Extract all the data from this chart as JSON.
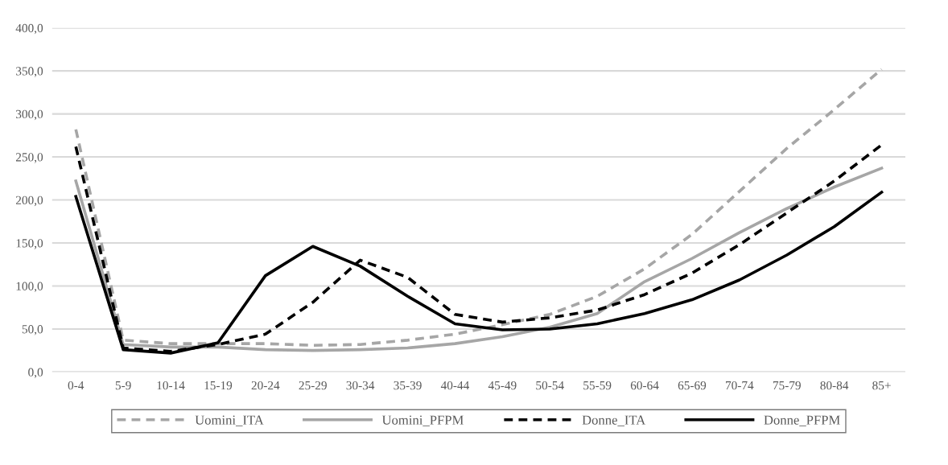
{
  "chart_data": {
    "type": "line",
    "categories": [
      "0-4",
      "5-9",
      "10-14",
      "15-19",
      "20-24",
      "25-29",
      "30-34",
      "35-39",
      "40-44",
      "45-49",
      "50-54",
      "55-59",
      "60-64",
      "65-69",
      "70-74",
      "75-79",
      "80-84",
      "85+"
    ],
    "series": [
      {
        "name": "Uomini_ITA",
        "color": "#a6a6a6",
        "line_style": "dashed",
        "values": [
          282,
          37,
          33,
          33,
          33,
          31,
          32,
          37,
          44,
          55,
          67,
          88,
          120,
          160,
          210,
          260,
          305,
          352
        ]
      },
      {
        "name": "Uomini_PFPM",
        "color": "#a6a6a6",
        "line_style": "solid",
        "values": [
          222,
          32,
          29,
          29,
          26,
          25,
          26,
          28,
          33,
          41,
          52,
          68,
          105,
          132,
          162,
          190,
          215,
          237
        ]
      },
      {
        "name": "Donne_ITA",
        "color": "#000000",
        "line_style": "dashed",
        "values": [
          262,
          28,
          24,
          32,
          44,
          81,
          130,
          110,
          67,
          58,
          63,
          72,
          90,
          115,
          148,
          185,
          222,
          264
        ]
      },
      {
        "name": "Donne_PFPM",
        "color": "#000000",
        "line_style": "solid",
        "values": [
          204,
          26,
          22,
          34,
          112,
          146,
          123,
          88,
          56,
          49,
          50,
          56,
          68,
          84,
          107,
          136,
          169,
          209
        ]
      }
    ],
    "ylim": [
      0,
      400
    ],
    "yticks": [
      {
        "value": 0,
        "label": "0,0"
      },
      {
        "value": 50,
        "label": "50,0"
      },
      {
        "value": 100,
        "label": "100,0"
      },
      {
        "value": 150,
        "label": "150,0"
      },
      {
        "value": 200,
        "label": "200,0"
      },
      {
        "value": 250,
        "label": "250,0"
      },
      {
        "value": 300,
        "label": "300,0"
      },
      {
        "value": 350,
        "label": "350,0"
      },
      {
        "value": 400,
        "label": "400,0"
      }
    ],
    "grid": "y",
    "legend": "bottom",
    "marker": "none"
  }
}
